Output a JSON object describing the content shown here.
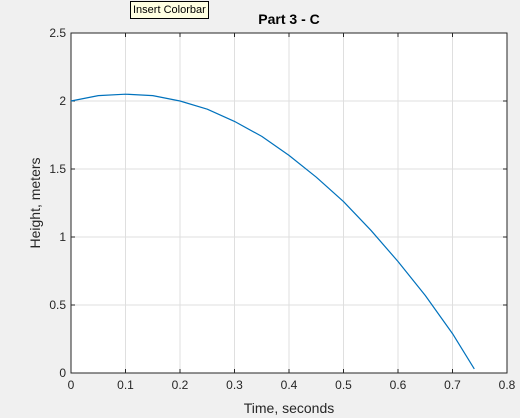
{
  "tooltip": {
    "text": "Insert Colorbar"
  },
  "colors": {
    "line": "#0072bd",
    "grid": "#dfdfdf",
    "axis": "#262626",
    "background": "#f0f0f0"
  },
  "chart_data": {
    "type": "line",
    "title": "Part 3 - C",
    "xlabel": "Time, seconds",
    "ylabel": "Height, meters",
    "xlim": [
      0,
      0.8
    ],
    "ylim": [
      0,
      2.5
    ],
    "xticks": [
      "0",
      "0.1",
      "0.2",
      "0.3",
      "0.4",
      "0.5",
      "0.6",
      "0.7",
      "0.8"
    ],
    "yticks": [
      "0",
      "0.5",
      "1",
      "1.5",
      "2",
      "2.5"
    ],
    "grid": true,
    "series": [
      {
        "x": [
          0,
          0.05,
          0.1,
          0.15,
          0.2,
          0.25,
          0.3,
          0.35,
          0.4,
          0.45,
          0.5,
          0.55,
          0.6,
          0.65,
          0.7,
          0.74
        ],
        "y": [
          2.0,
          2.04,
          2.05,
          2.04,
          2.0,
          1.94,
          1.85,
          1.74,
          1.6,
          1.44,
          1.26,
          1.05,
          0.82,
          0.57,
          0.29,
          0.03
        ]
      }
    ]
  }
}
